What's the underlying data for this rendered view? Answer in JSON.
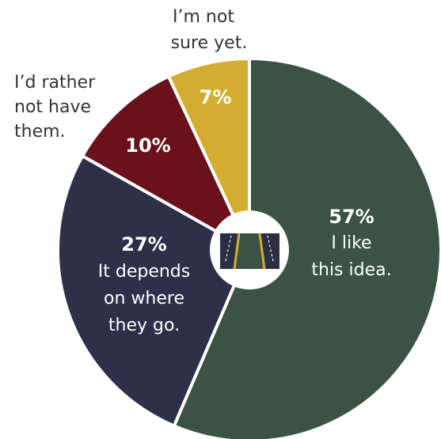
{
  "chart_data": {
    "type": "pie",
    "slices": [
      {
        "value": 57,
        "pct_label": "57%",
        "label_lines": [
          "I like",
          "this idea."
        ],
        "color": "#3b5342"
      },
      {
        "value": 27,
        "pct_label": "27%",
        "label_lines": [
          "It depends",
          "on where",
          "they go."
        ],
        "color": "#2c3048"
      },
      {
        "value": 10,
        "pct_label": "10%",
        "label_lines": [
          "I’d rather",
          "not have",
          "them."
        ],
        "color": "#6b111b"
      },
      {
        "value": 7,
        "pct_label": "7%",
        "label_lines": [
          "I’m not",
          "sure yet."
        ],
        "color": "#d3ad2f"
      }
    ],
    "center_icon": "road-icon",
    "legend": "none"
  }
}
